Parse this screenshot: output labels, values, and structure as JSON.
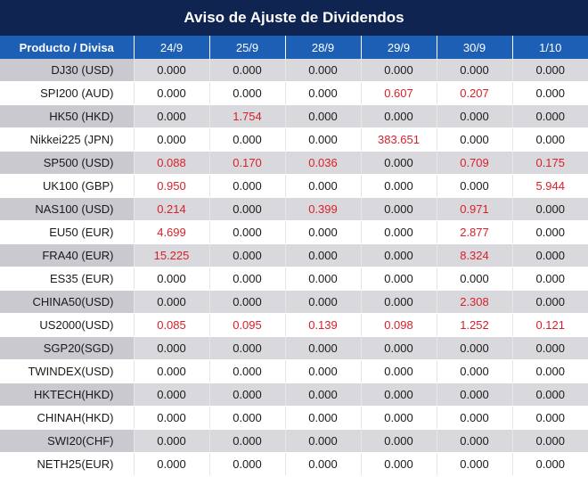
{
  "title": "Aviso de Ajuste de Dividendos",
  "columns": [
    "Producto / Divisa",
    "24/9",
    "25/9",
    "28/9",
    "29/9",
    "30/9",
    "1/10"
  ],
  "colors": {
    "header_bg": "#0f2451",
    "col_header_bg": "#1c5fb4",
    "highlight": "#d9202a"
  },
  "rows": [
    {
      "product": "DJ30 (USD)",
      "values": [
        "0.000",
        "0.000",
        "0.000",
        "0.000",
        "0.000",
        "0.000"
      ]
    },
    {
      "product": "SPI200 (AUD)",
      "values": [
        "0.000",
        "0.000",
        "0.000",
        "0.607",
        "0.207",
        "0.000"
      ]
    },
    {
      "product": "HK50 (HKD)",
      "values": [
        "0.000",
        "1.754",
        "0.000",
        "0.000",
        "0.000",
        "0.000"
      ]
    },
    {
      "product": "Nikkei225 (JPN)",
      "values": [
        "0.000",
        "0.000",
        "0.000",
        "383.651",
        "0.000",
        "0.000"
      ]
    },
    {
      "product": "SP500 (USD)",
      "values": [
        "0.088",
        "0.170",
        "0.036",
        "0.000",
        "0.709",
        "0.175"
      ]
    },
    {
      "product": "UK100 (GBP)",
      "values": [
        "0.950",
        "0.000",
        "0.000",
        "0.000",
        "0.000",
        "5.944"
      ]
    },
    {
      "product": "NAS100 (USD)",
      "values": [
        "0.214",
        "0.000",
        "0.399",
        "0.000",
        "0.971",
        "0.000"
      ]
    },
    {
      "product": "EU50 (EUR)",
      "values": [
        "4.699",
        "0.000",
        "0.000",
        "0.000",
        "2.877",
        "0.000"
      ]
    },
    {
      "product": "FRA40 (EUR)",
      "values": [
        "15.225",
        "0.000",
        "0.000",
        "0.000",
        "8.324",
        "0.000"
      ]
    },
    {
      "product": "ES35 (EUR)",
      "values": [
        "0.000",
        "0.000",
        "0.000",
        "0.000",
        "0.000",
        "0.000"
      ]
    },
    {
      "product": "CHINA50(USD)",
      "values": [
        "0.000",
        "0.000",
        "0.000",
        "0.000",
        "2.308",
        "0.000"
      ]
    },
    {
      "product": "US2000(USD)",
      "values": [
        "0.085",
        "0.095",
        "0.139",
        "0.098",
        "1.252",
        "0.121"
      ]
    },
    {
      "product": "SGP20(SGD)",
      "values": [
        "0.000",
        "0.000",
        "0.000",
        "0.000",
        "0.000",
        "0.000"
      ]
    },
    {
      "product": "TWINDEX(USD)",
      "values": [
        "0.000",
        "0.000",
        "0.000",
        "0.000",
        "0.000",
        "0.000"
      ]
    },
    {
      "product": "HKTECH(HKD)",
      "values": [
        "0.000",
        "0.000",
        "0.000",
        "0.000",
        "0.000",
        "0.000"
      ]
    },
    {
      "product": "CHINAH(HKD)",
      "values": [
        "0.000",
        "0.000",
        "0.000",
        "0.000",
        "0.000",
        "0.000"
      ]
    },
    {
      "product": "SWI20(CHF)",
      "values": [
        "0.000",
        "0.000",
        "0.000",
        "0.000",
        "0.000",
        "0.000"
      ]
    },
    {
      "product": "NETH25(EUR)",
      "values": [
        "0.000",
        "0.000",
        "0.000",
        "0.000",
        "0.000",
        "0.000"
      ]
    }
  ]
}
